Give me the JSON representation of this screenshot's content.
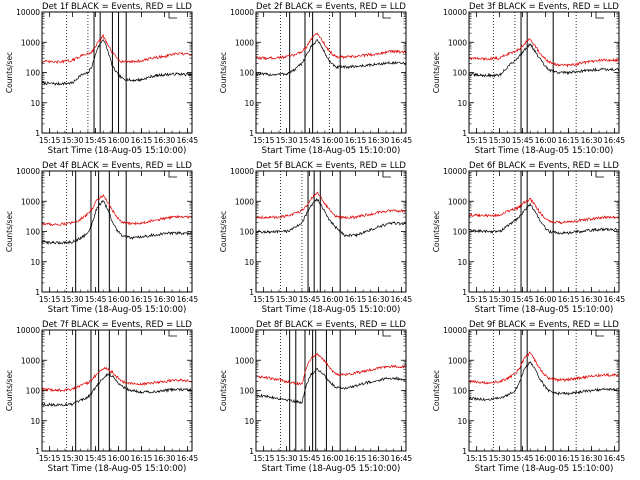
{
  "colors": {
    "events": "#000000",
    "lld": "#e00000",
    "background": "#ffffff"
  },
  "shared": {
    "xlabel": "Start Time (18-Aug-05 15:10:00)",
    "ylabel": "Counts/sec",
    "x_ticks": [
      "15:15",
      "15:30",
      "15:45",
      "16:00",
      "16:15",
      "16:30",
      "16:45"
    ],
    "y_ticks": [
      "1",
      "10",
      "100",
      "1000",
      "10000"
    ]
  },
  "chart_data": [
    {
      "type": "line",
      "title": "Det 1f BLACK = Events, RED = LLD",
      "xlabel": "Start Time (18-Aug-05 15:10:00)",
      "ylabel": "Counts/sec",
      "xlim": [
        "15:10",
        "16:48"
      ],
      "ylim": [
        1,
        10000
      ],
      "yscale": "log",
      "grid": false,
      "dotted_vlines": [
        "15:26",
        "15:40"
      ],
      "solid_vlines": [
        "15:44",
        "15:48",
        "15:56",
        "16:00",
        "16:05"
      ],
      "x": [
        "15:10",
        "15:20",
        "15:30",
        "15:35",
        "15:40",
        "15:43",
        "15:46",
        "15:50",
        "15:53",
        "15:56",
        "15:59",
        "16:02",
        "16:08",
        "16:15",
        "16:22",
        "16:30",
        "16:38",
        "16:45"
      ],
      "series": [
        {
          "name": "Events",
          "values": [
            45,
            42,
            45,
            80,
            95,
            180,
            600,
            1300,
            520,
            160,
            95,
            65,
            55,
            58,
            75,
            85,
            90,
            85
          ]
        },
        {
          "name": "LLD",
          "values": [
            230,
            220,
            250,
            350,
            420,
            500,
            900,
            1600,
            800,
            450,
            300,
            230,
            230,
            240,
            300,
            340,
            420,
            400
          ]
        }
      ]
    },
    {
      "type": "line",
      "title": "Det 2f BLACK = Events, RED = LLD",
      "xlabel": "Start Time (18-Aug-05 15:10:00)",
      "ylabel": "Counts/sec",
      "xlim": [
        "15:10",
        "16:48"
      ],
      "ylim": [
        1,
        10000
      ],
      "yscale": "log",
      "grid": false,
      "dotted_vlines": [
        "15:26",
        "15:58"
      ],
      "solid_vlines": [
        "15:32",
        "15:42",
        "15:47",
        "16:05"
      ],
      "x": [
        "15:10",
        "15:20",
        "15:30",
        "15:35",
        "15:40",
        "15:43",
        "15:46",
        "15:50",
        "15:53",
        "15:56",
        "15:59",
        "16:02",
        "16:08",
        "16:15",
        "16:22",
        "16:30",
        "16:38",
        "16:45"
      ],
      "series": [
        {
          "name": "Events",
          "values": [
            90,
            85,
            90,
            120,
            200,
            380,
            700,
            1200,
            700,
            350,
            200,
            150,
            150,
            160,
            170,
            190,
            210,
            200
          ]
        },
        {
          "name": "LLD",
          "values": [
            300,
            300,
            330,
            380,
            500,
            700,
            1300,
            2000,
            1200,
            700,
            450,
            330,
            320,
            340,
            380,
            420,
            500,
            480
          ]
        }
      ]
    },
    {
      "type": "line",
      "title": "Det 3f BLACK = Events, RED = LLD",
      "xlabel": "Start Time (18-Aug-05 15:10:00)",
      "ylabel": "Counts/sec",
      "xlim": [
        "15:10",
        "16:48"
      ],
      "ylim": [
        1,
        10000
      ],
      "yscale": "log",
      "grid": false,
      "dotted_vlines": [
        "15:26",
        "15:40",
        "16:20"
      ],
      "solid_vlines": [
        "15:44",
        "15:48",
        "16:05"
      ],
      "x": [
        "15:10",
        "15:20",
        "15:30",
        "15:35",
        "15:40",
        "15:43",
        "15:46",
        "15:50",
        "15:53",
        "15:56",
        "15:59",
        "16:02",
        "16:08",
        "16:15",
        "16:22",
        "16:30",
        "16:38",
        "16:45"
      ],
      "series": [
        {
          "name": "Events",
          "values": [
            85,
            80,
            80,
            150,
            250,
            350,
            550,
            900,
            500,
            300,
            180,
            120,
            100,
            100,
            110,
            120,
            130,
            125
          ]
        },
        {
          "name": "LLD",
          "values": [
            300,
            280,
            300,
            400,
            500,
            600,
            900,
            1300,
            800,
            450,
            300,
            220,
            180,
            170,
            200,
            230,
            260,
            250
          ]
        }
      ]
    },
    {
      "type": "line",
      "title": "Det 4f BLACK = Events, RED = LLD",
      "xlabel": "Start Time (18-Aug-05 15:10:00)",
      "ylabel": "Counts/sec",
      "xlim": [
        "15:10",
        "16:48"
      ],
      "ylim": [
        1,
        10000
      ],
      "yscale": "log",
      "grid": false,
      "dotted_vlines": [
        "15:26"
      ],
      "solid_vlines": [
        "15:32",
        "15:42",
        "15:47",
        "15:54",
        "16:05"
      ],
      "x": [
        "15:10",
        "15:20",
        "15:30",
        "15:35",
        "15:40",
        "15:43",
        "15:46",
        "15:50",
        "15:53",
        "15:56",
        "15:59",
        "16:02",
        "16:08",
        "16:15",
        "16:22",
        "16:30",
        "16:38",
        "16:45"
      ],
      "series": [
        {
          "name": "Events",
          "values": [
            45,
            42,
            45,
            60,
            90,
            200,
            650,
            1000,
            550,
            200,
            110,
            75,
            60,
            65,
            75,
            85,
            90,
            85
          ]
        },
        {
          "name": "LLD",
          "values": [
            180,
            170,
            190,
            250,
            380,
            600,
            1100,
            1600,
            900,
            500,
            300,
            200,
            180,
            190,
            230,
            270,
            310,
            300
          ]
        }
      ]
    },
    {
      "type": "line",
      "title": "Det 5f BLACK = Events, RED = LLD",
      "xlabel": "Start Time (18-Aug-05 15:10:00)",
      "ylabel": "Counts/sec",
      "xlim": [
        "15:10",
        "16:48"
      ],
      "ylim": [
        1,
        10000
      ],
      "yscale": "log",
      "grid": false,
      "dotted_vlines": [
        "15:26",
        "15:40"
      ],
      "solid_vlines": [
        "15:44",
        "15:48",
        "15:52",
        "16:05"
      ],
      "x": [
        "15:10",
        "15:20",
        "15:30",
        "15:35",
        "15:40",
        "15:43",
        "15:46",
        "15:50",
        "15:53",
        "15:56",
        "15:59",
        "16:02",
        "16:08",
        "16:15",
        "16:22",
        "16:30",
        "16:38",
        "16:45"
      ],
      "series": [
        {
          "name": "Events",
          "values": [
            100,
            95,
            100,
            130,
            200,
            380,
            700,
            1200,
            700,
            350,
            200,
            140,
            75,
            75,
            100,
            140,
            190,
            180
          ]
        },
        {
          "name": "LLD",
          "values": [
            300,
            290,
            320,
            380,
            500,
            700,
            1200,
            2000,
            1200,
            700,
            450,
            320,
            280,
            300,
            350,
            420,
            500,
            480
          ]
        }
      ]
    },
    {
      "type": "line",
      "title": "Det 6f BLACK = Events, RED = LLD",
      "xlabel": "Start Time (18-Aug-05 15:10:00)",
      "ylabel": "Counts/sec",
      "xlim": [
        "15:10",
        "16:48"
      ],
      "ylim": [
        1,
        10000
      ],
      "yscale": "log",
      "grid": false,
      "dotted_vlines": [
        "15:26",
        "15:40",
        "16:20"
      ],
      "solid_vlines": [
        "15:44",
        "15:48",
        "16:05"
      ],
      "x": [
        "15:10",
        "15:20",
        "15:30",
        "15:35",
        "15:40",
        "15:43",
        "15:46",
        "15:50",
        "15:53",
        "15:56",
        "15:59",
        "16:02",
        "16:08",
        "16:15",
        "16:22",
        "16:30",
        "16:38",
        "16:45"
      ],
      "series": [
        {
          "name": "Events",
          "values": [
            110,
            100,
            100,
            150,
            230,
            300,
            500,
            800,
            450,
            250,
            150,
            100,
            90,
            90,
            100,
            110,
            120,
            115
          ]
        },
        {
          "name": "LLD",
          "values": [
            350,
            330,
            350,
            450,
            550,
            650,
            900,
            1200,
            750,
            450,
            300,
            220,
            200,
            200,
            230,
            260,
            300,
            290
          ]
        }
      ]
    },
    {
      "type": "line",
      "title": "Det 7f BLACK = Events, RED = LLD",
      "xlabel": "Start Time (18-Aug-05 15:10:00)",
      "ylabel": "Counts/sec",
      "xlim": [
        "15:10",
        "16:48"
      ],
      "ylim": [
        1,
        10000
      ],
      "yscale": "log",
      "grid": false,
      "dotted_vlines": [
        "15:26"
      ],
      "solid_vlines": [
        "15:32",
        "15:42",
        "15:47",
        "15:54",
        "16:05"
      ],
      "x": [
        "15:10",
        "15:20",
        "15:30",
        "15:35",
        "15:40",
        "15:43",
        "15:46",
        "15:50",
        "15:53",
        "15:56",
        "15:59",
        "16:02",
        "16:08",
        "16:15",
        "16:22",
        "16:30",
        "16:38",
        "16:45"
      ],
      "series": [
        {
          "name": "Events",
          "values": [
            35,
            33,
            35,
            45,
            60,
            90,
            150,
            250,
            350,
            300,
            200,
            140,
            100,
            90,
            90,
            100,
            110,
            105
          ]
        },
        {
          "name": "LLD",
          "values": [
            110,
            100,
            110,
            140,
            180,
            250,
            350,
            550,
            500,
            400,
            280,
            200,
            170,
            160,
            180,
            200,
            220,
            210
          ]
        }
      ]
    },
    {
      "type": "line",
      "title": "Det 8f BLACK = Events, RED = LLD",
      "xlabel": "Start Time (18-Aug-05 15:10:00)",
      "ylabel": "Counts/sec",
      "xlim": [
        "15:10",
        "16:48"
      ],
      "ylim": [
        1,
        10000
      ],
      "yscale": "log",
      "grid": false,
      "dotted_vlines": [
        "15:26"
      ],
      "solid_vlines": [
        "15:32",
        "15:36",
        "15:42",
        "15:47",
        "15:49",
        "15:56",
        "16:05"
      ],
      "x": [
        "15:10",
        "15:20",
        "15:30",
        "15:35",
        "15:40",
        "15:43",
        "15:46",
        "15:50",
        "15:53",
        "15:56",
        "15:59",
        "16:02",
        "16:08",
        "16:15",
        "16:22",
        "16:30",
        "16:38",
        "16:45"
      ],
      "series": [
        {
          "name": "Events",
          "values": [
            70,
            60,
            50,
            45,
            40,
            150,
            350,
            500,
            400,
            250,
            180,
            130,
            120,
            140,
            180,
            220,
            260,
            240
          ]
        },
        {
          "name": "LLD",
          "values": [
            300,
            250,
            200,
            180,
            160,
            600,
            1200,
            1600,
            1200,
            800,
            500,
            350,
            330,
            380,
            450,
            550,
            650,
            600
          ]
        }
      ]
    },
    {
      "type": "line",
      "title": "Det 9f BLACK = Events, RED = LLD",
      "xlabel": "Start Time (18-Aug-05 15:10:00)",
      "ylabel": "Counts/sec",
      "xlim": [
        "15:10",
        "16:48"
      ],
      "ylim": [
        1,
        10000
      ],
      "yscale": "log",
      "grid": false,
      "dotted_vlines": [
        "15:26",
        "15:40",
        "16:20"
      ],
      "solid_vlines": [
        "15:44",
        "15:48",
        "16:05"
      ],
      "x": [
        "15:10",
        "15:20",
        "15:30",
        "15:35",
        "15:40",
        "15:43",
        "15:46",
        "15:50",
        "15:53",
        "15:56",
        "15:59",
        "16:02",
        "16:08",
        "16:15",
        "16:22",
        "16:30",
        "16:38",
        "16:45"
      ],
      "series": [
        {
          "name": "Events",
          "values": [
            55,
            50,
            55,
            70,
            100,
            180,
            500,
            900,
            500,
            250,
            150,
            100,
            80,
            80,
            90,
            100,
            110,
            105
          ]
        },
        {
          "name": "LLD",
          "values": [
            200,
            180,
            200,
            250,
            350,
            550,
            1100,
            1800,
            1000,
            550,
            350,
            250,
            220,
            230,
            260,
            290,
            330,
            320
          ]
        }
      ]
    }
  ]
}
